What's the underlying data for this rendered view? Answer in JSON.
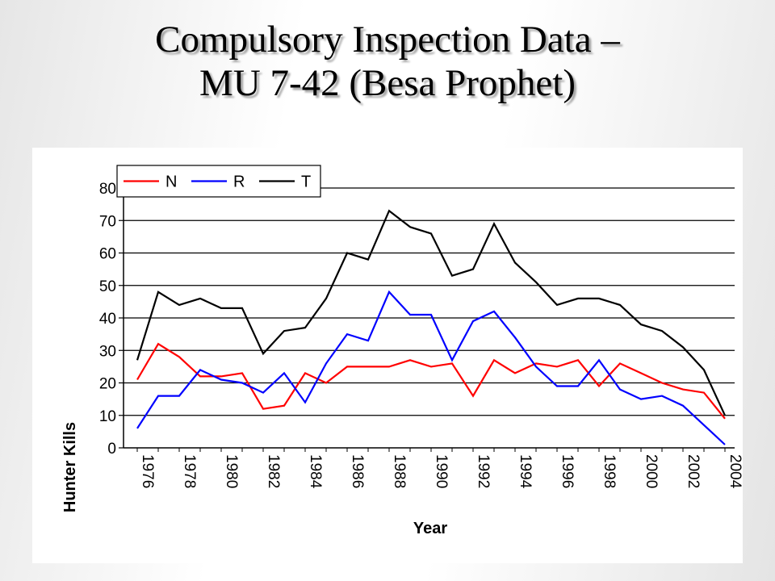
{
  "slide": {
    "title_line1": "Compulsory Inspection Data –",
    "title_line2": "MU 7-42 (Besa Prophet)"
  },
  "chart_data": {
    "type": "line",
    "xlabel": "Year",
    "ylabel": "Hunter Kills",
    "ylim": [
      0,
      80
    ],
    "y_ticks": [
      0,
      10,
      20,
      30,
      40,
      50,
      60,
      70,
      80
    ],
    "x_tick_labels": [
      "1976",
      "1978",
      "1980",
      "1982",
      "1984",
      "1986",
      "1988",
      "1990",
      "1992",
      "1994",
      "1996",
      "1998",
      "2000",
      "2002",
      "2004"
    ],
    "x": [
      1976,
      1977,
      1978,
      1979,
      1980,
      1981,
      1982,
      1983,
      1984,
      1985,
      1986,
      1987,
      1988,
      1989,
      1990,
      1991,
      1992,
      1993,
      1994,
      1995,
      1996,
      1997,
      1998,
      1999,
      2000,
      2001,
      2002,
      2003,
      2004
    ],
    "grid": "horizontal",
    "legend": "top-left",
    "series": [
      {
        "name": "N",
        "color": "#ff0000",
        "values": [
          21,
          32,
          28,
          22,
          22,
          23,
          12,
          13,
          23,
          20,
          25,
          25,
          25,
          27,
          25,
          26,
          16,
          27,
          23,
          26,
          25,
          27,
          19,
          26,
          23,
          20,
          18,
          17,
          9
        ]
      },
      {
        "name": "R",
        "color": "#0000ff",
        "values": [
          6,
          16,
          16,
          24,
          21,
          20,
          17,
          23,
          14,
          26,
          35,
          33,
          48,
          41,
          41,
          27,
          39,
          42,
          34,
          25,
          19,
          19,
          27,
          18,
          15,
          16,
          13,
          7,
          1
        ]
      },
      {
        "name": "T",
        "color": "#000000",
        "values": [
          27,
          48,
          44,
          46,
          43,
          43,
          29,
          36,
          37,
          46,
          60,
          58,
          73,
          68,
          66,
          53,
          55,
          69,
          57,
          51,
          44,
          46,
          46,
          44,
          38,
          36,
          31,
          24,
          10
        ]
      }
    ]
  }
}
